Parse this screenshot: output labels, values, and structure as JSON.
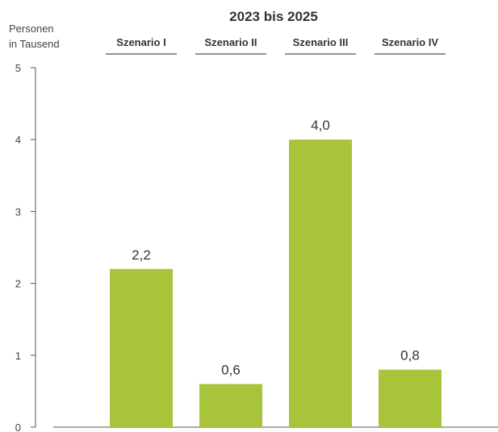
{
  "chart_data": {
    "type": "bar",
    "title": "2023 bis 2025",
    "ylabel_lines": [
      "Personen",
      "in Tausend"
    ],
    "categories": [
      "Szenario I",
      "Szenario II",
      "Szenario III",
      "Szenario IV"
    ],
    "values": [
      2.2,
      0.6,
      4.0,
      0.8
    ],
    "value_labels": [
      "2,2",
      "0,6",
      "4,0",
      "0,8"
    ],
    "yticks": [
      0,
      1,
      2,
      3,
      4,
      5
    ],
    "ylim": [
      0,
      5
    ],
    "bar_color": "#a8c43a",
    "grid": false,
    "legend": "none"
  }
}
